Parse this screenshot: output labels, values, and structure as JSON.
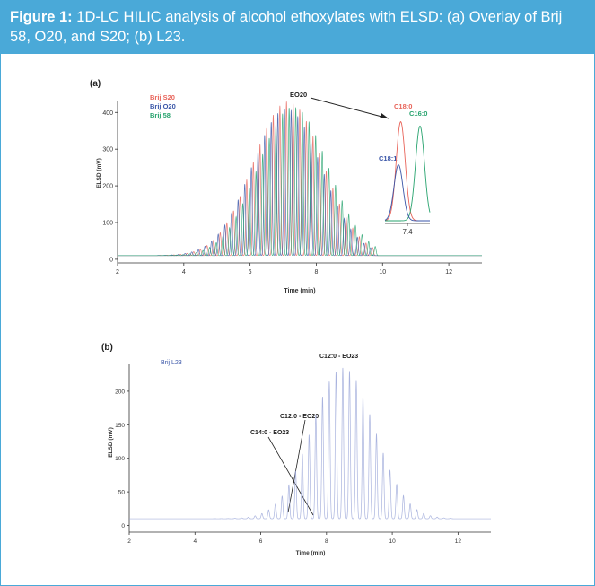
{
  "figure": {
    "label": "Figure 1:",
    "caption": "1D-LC HILIC analysis of alcohol ethoxylates with ELSD: (a) Overlay of Brij 58, O20, and S20; (b) L23."
  },
  "colors": {
    "accent": "#4aa9d8",
    "s20": "#e8645a",
    "o20": "#3a56a8",
    "b58": "#27a36e",
    "l23": "#9aa6d8",
    "axis": "#333333"
  },
  "chart_data": [
    {
      "id": "a",
      "type": "line",
      "panel_label": "(a)",
      "xlabel": "Time (min)",
      "ylabel": "ELSD (mV)",
      "xlim": [
        2,
        13
      ],
      "ylim": [
        -10,
        430
      ],
      "xticks": [
        2,
        4,
        6,
        8,
        10,
        12
      ],
      "yticks": [
        0,
        100,
        200,
        300,
        400
      ],
      "baseline": 10,
      "series": [
        {
          "name": "Brij S20",
          "color": "#e8645a",
          "center": 7.15,
          "sigma": 1.05,
          "amp": 420,
          "first_peak": 3.3,
          "spacing": 0.2,
          "count": 33,
          "width": 0.026
        },
        {
          "name": "Brij O20",
          "color": "#3a56a8",
          "center": 7.1,
          "sigma": 1.05,
          "amp": 400,
          "first_peak": 3.24,
          "spacing": 0.2,
          "count": 33,
          "width": 0.026
        },
        {
          "name": "Brij 58",
          "color": "#27a36e",
          "center": 7.3,
          "sigma": 1.05,
          "amp": 405,
          "first_peak": 3.38,
          "spacing": 0.2,
          "count": 33,
          "width": 0.026
        }
      ],
      "annotations": [
        {
          "text": "EO20",
          "x": 7.3,
          "y": 420
        }
      ],
      "inset": {
        "xtick_label": "7.4",
        "peaks": [
          {
            "label": "C18:0",
            "color": "#e8645a",
            "pos": 0.35,
            "height": 0.92
          },
          {
            "label": "C16:0",
            "color": "#27a36e",
            "pos": 0.78,
            "height": 0.88
          },
          {
            "label": "C18:1",
            "color": "#3a56a8",
            "pos": 0.3,
            "height": 0.52
          }
        ]
      }
    },
    {
      "id": "b",
      "type": "line",
      "panel_label": "(b)",
      "xlabel": "Time (min)",
      "ylabel": "ELSD (mV)",
      "xlim": [
        2,
        13
      ],
      "ylim": [
        -10,
        240
      ],
      "xticks": [
        2,
        4,
        6,
        8,
        10,
        12
      ],
      "yticks": [
        0,
        50,
        100,
        150,
        200
      ],
      "baseline": 10,
      "series": [
        {
          "name": "Brij L23",
          "color": "#9aa6d8",
          "center": 8.5,
          "sigma": 0.95,
          "amp": 225,
          "first_peak": 4.6,
          "spacing": 0.205,
          "count": 36,
          "width": 0.024
        }
      ],
      "annotations": [
        {
          "text": "C12:0 - EO23",
          "x": 8.4,
          "y": 226
        },
        {
          "text": "C12:0 - EO20",
          "x": 7.8,
          "y": 150
        },
        {
          "text": "C14:0 - EO23",
          "x": 7.6,
          "y": 20
        }
      ]
    }
  ]
}
